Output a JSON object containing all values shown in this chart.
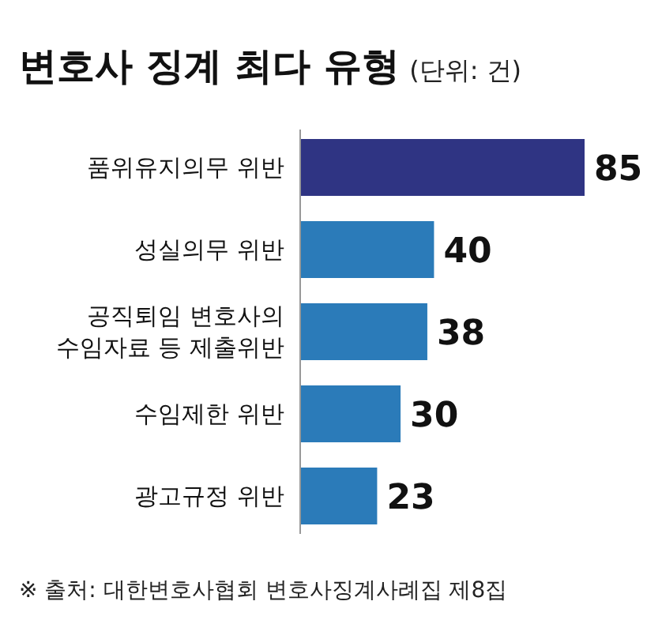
{
  "chart_data": {
    "type": "bar",
    "orientation": "horizontal",
    "title": "변호사 징계 최다 유형",
    "subtitle": "(단위: 건)",
    "categories": [
      "품위유지의무 위반",
      "성실의무 위반",
      "공직퇴임 변호사의 수임자료 등 제출위반",
      "수임제한 위반",
      "광고규정 위반"
    ],
    "values": [
      85,
      40,
      38,
      30,
      23
    ],
    "colors": [
      "#2f3483",
      "#2b7bb9",
      "#2b7bb9",
      "#2b7bb9",
      "#2b7bb9"
    ],
    "data_labels": true,
    "annotations": [
      "※ 출처: 대한변호사협회 변호사징계사례집 제8집"
    ]
  }
}
